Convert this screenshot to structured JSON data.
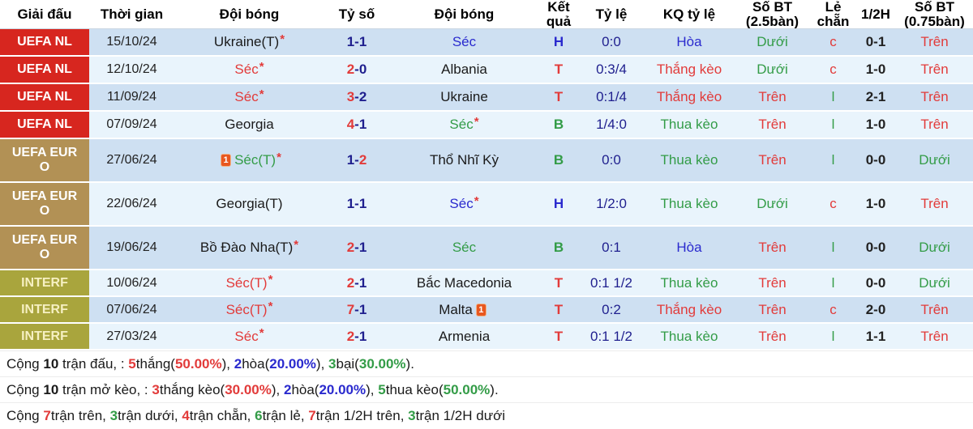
{
  "colors": {
    "red": "#e23b3a",
    "green": "#339c47",
    "blue": "#2a2ace",
    "navy": "#1f1f8e",
    "dark": "#222222",
    "badge_red": "#d7261f",
    "badge_gold": "#b29155",
    "badge_olive": "#a9a53d",
    "badge_olive_text": "#f6f0c2",
    "row_dark": "#cee0f2",
    "row_light": "#e9f4fc",
    "card": "#e8571f"
  },
  "symbols": {
    "star": "*",
    "red_card": "1",
    "score_dash": "-"
  },
  "columns": [
    "Giải đấu",
    "Thời gian",
    "Đội bóng",
    "Tỷ số",
    "Đội bóng",
    "Kết quả",
    "Tỷ lệ",
    "KQ tỷ lệ",
    "Số BT (2.5bàn)",
    "Lẻ chẵn",
    "1/2H",
    "Số BT (0.75bàn)"
  ],
  "rows": [
    {
      "league": "UEFA NL",
      "style": "red",
      "size": "norm",
      "date": "15/10/24",
      "home": {
        "name": "Ukraine(T)",
        "color": "black",
        "star": true,
        "card": null
      },
      "score": {
        "h": "1",
        "hc": "navy",
        "a": "1",
        "ac": "navy"
      },
      "away": {
        "name": "Séc",
        "color": "blue",
        "star": false,
        "card": null
      },
      "result": {
        "t": "H",
        "c": "blue"
      },
      "odds": "0:0",
      "kq": {
        "t": "Hòa",
        "c": "blue"
      },
      "bt25": {
        "t": "Dưới",
        "c": "green"
      },
      "le": {
        "t": "c",
        "c": "red"
      },
      "half": "0-1",
      "bt075": {
        "t": "Trên",
        "c": "red"
      }
    },
    {
      "league": "UEFA NL",
      "style": "red",
      "size": "norm",
      "date": "12/10/24",
      "home": {
        "name": "Séc",
        "color": "red",
        "star": true,
        "card": null
      },
      "score": {
        "h": "2",
        "hc": "red",
        "a": "0",
        "ac": "navy"
      },
      "away": {
        "name": "Albania",
        "color": "black",
        "star": false,
        "card": null
      },
      "result": {
        "t": "T",
        "c": "red"
      },
      "odds": "0:3/4",
      "kq": {
        "t": "Thắng kèo",
        "c": "red"
      },
      "bt25": {
        "t": "Dưới",
        "c": "green"
      },
      "le": {
        "t": "c",
        "c": "red"
      },
      "half": "1-0",
      "bt075": {
        "t": "Trên",
        "c": "red"
      }
    },
    {
      "league": "UEFA NL",
      "style": "red",
      "size": "norm",
      "date": "11/09/24",
      "home": {
        "name": "Séc",
        "color": "red",
        "star": true,
        "card": null
      },
      "score": {
        "h": "3",
        "hc": "red",
        "a": "2",
        "ac": "navy"
      },
      "away": {
        "name": "Ukraine",
        "color": "black",
        "star": false,
        "card": null
      },
      "result": {
        "t": "T",
        "c": "red"
      },
      "odds": "0:1/4",
      "kq": {
        "t": "Thắng kèo",
        "c": "red"
      },
      "bt25": {
        "t": "Trên",
        "c": "red"
      },
      "le": {
        "t": "l",
        "c": "green"
      },
      "half": "2-1",
      "bt075": {
        "t": "Trên",
        "c": "red"
      }
    },
    {
      "league": "UEFA NL",
      "style": "red",
      "size": "norm",
      "date": "07/09/24",
      "home": {
        "name": "Georgia",
        "color": "black",
        "star": false,
        "card": null
      },
      "score": {
        "h": "4",
        "hc": "red",
        "a": "1",
        "ac": "navy"
      },
      "away": {
        "name": "Séc",
        "color": "green",
        "star": true,
        "card": null
      },
      "result": {
        "t": "B",
        "c": "green"
      },
      "odds": "1/4:0",
      "kq": {
        "t": "Thua kèo",
        "c": "green"
      },
      "bt25": {
        "t": "Trên",
        "c": "red"
      },
      "le": {
        "t": "l",
        "c": "green"
      },
      "half": "1-0",
      "bt075": {
        "t": "Trên",
        "c": "red"
      }
    },
    {
      "league": "UEFA EURO",
      "style": "gold",
      "size": "tall",
      "date": "27/06/24",
      "home": {
        "name": "Séc(T)",
        "color": "green",
        "star": true,
        "card": "before"
      },
      "score": {
        "h": "1",
        "hc": "navy",
        "a": "2",
        "ac": "red"
      },
      "away": {
        "name": "Thổ Nhĩ Kỳ",
        "color": "black",
        "star": false,
        "card": null
      },
      "result": {
        "t": "B",
        "c": "green"
      },
      "odds": "0:0",
      "kq": {
        "t": "Thua kèo",
        "c": "green"
      },
      "bt25": {
        "t": "Trên",
        "c": "red"
      },
      "le": {
        "t": "l",
        "c": "green"
      },
      "half": "0-0",
      "bt075": {
        "t": "Dưới",
        "c": "green"
      }
    },
    {
      "league": "UEFA EURO",
      "style": "gold",
      "size": "tall",
      "date": "22/06/24",
      "home": {
        "name": "Georgia(T)",
        "color": "black",
        "star": false,
        "card": null
      },
      "score": {
        "h": "1",
        "hc": "navy",
        "a": "1",
        "ac": "navy"
      },
      "away": {
        "name": "Séc",
        "color": "blue",
        "star": true,
        "card": null
      },
      "result": {
        "t": "H",
        "c": "blue"
      },
      "odds": "1/2:0",
      "kq": {
        "t": "Thua kèo",
        "c": "green"
      },
      "bt25": {
        "t": "Dưới",
        "c": "green"
      },
      "le": {
        "t": "c",
        "c": "red"
      },
      "half": "1-0",
      "bt075": {
        "t": "Trên",
        "c": "red"
      }
    },
    {
      "league": "UEFA EURO",
      "style": "gold",
      "size": "tall",
      "date": "19/06/24",
      "home": {
        "name": "Bồ Đào Nha(T)",
        "color": "black",
        "star": true,
        "card": null
      },
      "score": {
        "h": "2",
        "hc": "red",
        "a": "1",
        "ac": "navy"
      },
      "away": {
        "name": "Séc",
        "color": "green",
        "star": false,
        "card": null
      },
      "result": {
        "t": "B",
        "c": "green"
      },
      "odds": "0:1",
      "kq": {
        "t": "Hòa",
        "c": "blue"
      },
      "bt25": {
        "t": "Trên",
        "c": "red"
      },
      "le": {
        "t": "l",
        "c": "green"
      },
      "half": "0-0",
      "bt075": {
        "t": "Dưới",
        "c": "green"
      }
    },
    {
      "league": "INTERF",
      "style": "olive",
      "size": "short",
      "date": "10/06/24",
      "home": {
        "name": "Séc(T)",
        "color": "red",
        "star": true,
        "card": null
      },
      "score": {
        "h": "2",
        "hc": "red",
        "a": "1",
        "ac": "navy"
      },
      "away": {
        "name": "Bắc Macedonia",
        "color": "black",
        "star": false,
        "card": null
      },
      "result": {
        "t": "T",
        "c": "red"
      },
      "odds": "0:1 1/2",
      "kq": {
        "t": "Thua kèo",
        "c": "green"
      },
      "bt25": {
        "t": "Trên",
        "c": "red"
      },
      "le": {
        "t": "l",
        "c": "green"
      },
      "half": "0-0",
      "bt075": {
        "t": "Dưới",
        "c": "green"
      }
    },
    {
      "league": "INTERF",
      "style": "olive",
      "size": "short",
      "date": "07/06/24",
      "home": {
        "name": "Séc(T)",
        "color": "red",
        "star": true,
        "card": null
      },
      "score": {
        "h": "7",
        "hc": "red",
        "a": "1",
        "ac": "navy"
      },
      "away": {
        "name": "Malta",
        "color": "black",
        "star": false,
        "card": "after"
      },
      "result": {
        "t": "T",
        "c": "red"
      },
      "odds": "0:2",
      "kq": {
        "t": "Thắng kèo",
        "c": "red"
      },
      "bt25": {
        "t": "Trên",
        "c": "red"
      },
      "le": {
        "t": "c",
        "c": "red"
      },
      "half": "2-0",
      "bt075": {
        "t": "Trên",
        "c": "red"
      }
    },
    {
      "league": "INTERF",
      "style": "olive",
      "size": "short",
      "date": "27/03/24",
      "home": {
        "name": "Séc",
        "color": "red",
        "star": true,
        "card": null
      },
      "score": {
        "h": "2",
        "hc": "red",
        "a": "1",
        "ac": "navy"
      },
      "away": {
        "name": "Armenia",
        "color": "black",
        "star": false,
        "card": null
      },
      "result": {
        "t": "T",
        "c": "red"
      },
      "odds": "0:1 1/2",
      "kq": {
        "t": "Thua kèo",
        "c": "green"
      },
      "bt25": {
        "t": "Trên",
        "c": "red"
      },
      "le": {
        "t": "l",
        "c": "green"
      },
      "half": "1-1",
      "bt075": {
        "t": "Trên",
        "c": "red"
      }
    }
  ],
  "footer": {
    "lines": [
      {
        "segments": [
          {
            "text": "Cộng ",
            "color": "black",
            "bold": false
          },
          {
            "text": "10",
            "color": "black",
            "bold": true
          },
          {
            "text": " trận đấu, : ",
            "color": "black",
            "bold": false
          },
          {
            "text": "5",
            "color": "red",
            "bold": true
          },
          {
            "text": "thắng(",
            "color": "black",
            "bold": false
          },
          {
            "text": "50.00%",
            "color": "red",
            "bold": true
          },
          {
            "text": "), ",
            "color": "black",
            "bold": false
          },
          {
            "text": "2",
            "color": "blue",
            "bold": true
          },
          {
            "text": "hòa(",
            "color": "black",
            "bold": false
          },
          {
            "text": "20.00%",
            "color": "blue",
            "bold": true
          },
          {
            "text": "), ",
            "color": "black",
            "bold": false
          },
          {
            "text": "3",
            "color": "green",
            "bold": true
          },
          {
            "text": "bại(",
            "color": "black",
            "bold": false
          },
          {
            "text": "30.00%",
            "color": "green",
            "bold": true
          },
          {
            "text": ").",
            "color": "black",
            "bold": false
          }
        ]
      },
      {
        "segments": [
          {
            "text": "Cộng ",
            "color": "black",
            "bold": false
          },
          {
            "text": "10",
            "color": "black",
            "bold": true
          },
          {
            "text": " trận mở kèo, : ",
            "color": "black",
            "bold": false
          },
          {
            "text": "3",
            "color": "red",
            "bold": true
          },
          {
            "text": "thắng kèo(",
            "color": "black",
            "bold": false
          },
          {
            "text": "30.00%",
            "color": "red",
            "bold": true
          },
          {
            "text": "), ",
            "color": "black",
            "bold": false
          },
          {
            "text": "2",
            "color": "blue",
            "bold": true
          },
          {
            "text": "hòa(",
            "color": "black",
            "bold": false
          },
          {
            "text": "20.00%",
            "color": "blue",
            "bold": true
          },
          {
            "text": "), ",
            "color": "black",
            "bold": false
          },
          {
            "text": "5",
            "color": "green",
            "bold": true
          },
          {
            "text": "thua kèo(",
            "color": "black",
            "bold": false
          },
          {
            "text": "50.00%",
            "color": "green",
            "bold": true
          },
          {
            "text": ").",
            "color": "black",
            "bold": false
          }
        ]
      },
      {
        "segments": [
          {
            "text": "Cộng ",
            "color": "black",
            "bold": false
          },
          {
            "text": "7",
            "color": "red",
            "bold": true
          },
          {
            "text": "trận trên, ",
            "color": "black",
            "bold": false
          },
          {
            "text": "3",
            "color": "green",
            "bold": true
          },
          {
            "text": "trận dưới, ",
            "color": "black",
            "bold": false
          },
          {
            "text": "4",
            "color": "red",
            "bold": true
          },
          {
            "text": "trận chẵn, ",
            "color": "black",
            "bold": false
          },
          {
            "text": "6",
            "color": "green",
            "bold": true
          },
          {
            "text": "trận lẻ, ",
            "color": "black",
            "bold": false
          },
          {
            "text": "7",
            "color": "red",
            "bold": true
          },
          {
            "text": "trận 1/2H trên, ",
            "color": "black",
            "bold": false
          },
          {
            "text": "3",
            "color": "green",
            "bold": true
          },
          {
            "text": "trận 1/2H dưới",
            "color": "black",
            "bold": false
          }
        ]
      }
    ]
  }
}
